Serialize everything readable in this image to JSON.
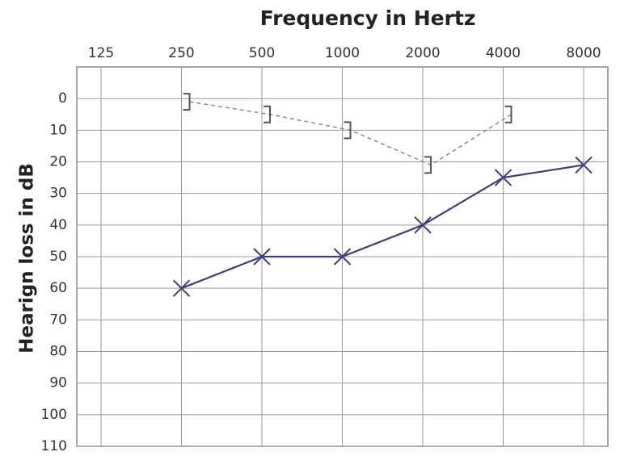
{
  "chart_data": {
    "type": "line",
    "title": "Frequency in Hertz",
    "y_label": "Hearign loss in dB",
    "categories": [
      "125",
      "250",
      "500",
      "1000",
      "2000",
      "4000",
      "8000"
    ],
    "series": [
      {
        "marker": "x",
        "color": "#3d3f7c",
        "dashed": false,
        "values": [
          null,
          60,
          50,
          50,
          40,
          25,
          21
        ]
      },
      {
        "marker": "bracket",
        "color": "#8a8a8a",
        "dashed": true,
        "values": [
          null,
          1,
          5,
          10,
          21,
          5,
          null
        ]
      }
    ],
    "ylim": [
      -10,
      110
    ],
    "yticks": [
      0,
      10,
      20,
      30,
      40,
      50,
      60,
      70,
      80,
      90,
      100,
      110
    ],
    "y_inverted": true,
    "grid": true
  }
}
